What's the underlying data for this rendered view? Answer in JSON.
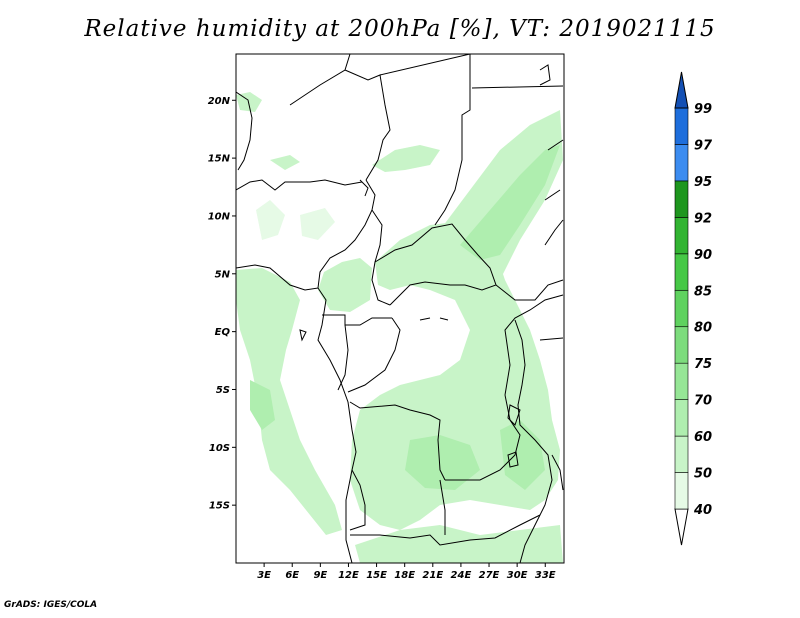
{
  "title": "Relative humidity at 200hPa [%], VT: 2019021115",
  "credit": "GrADS: IGES/COLA",
  "map": {
    "lon_range": [
      0,
      35
    ],
    "lat_range": [
      -20,
      24
    ],
    "lat_labels": [
      {
        "lat": 20,
        "text": "20N"
      },
      {
        "lat": 15,
        "text": "15N"
      },
      {
        "lat": 10,
        "text": "10N"
      },
      {
        "lat": 5,
        "text": "5N"
      },
      {
        "lat": 0,
        "text": "EQ"
      },
      {
        "lat": -5,
        "text": "5S"
      },
      {
        "lat": -10,
        "text": "10S"
      },
      {
        "lat": -15,
        "text": "15S"
      }
    ],
    "lon_labels": [
      {
        "lon": 3,
        "text": "3E"
      },
      {
        "lon": 6,
        "text": "6E"
      },
      {
        "lon": 9,
        "text": "9E"
      },
      {
        "lon": 12,
        "text": "12E"
      },
      {
        "lon": 15,
        "text": "15E"
      },
      {
        "lon": 18,
        "text": "18E"
      },
      {
        "lon": 21,
        "text": "21E"
      },
      {
        "lon": 24,
        "text": "24E"
      },
      {
        "lon": 27,
        "text": "27E"
      },
      {
        "lon": 30,
        "text": "30E"
      },
      {
        "lon": 33,
        "text": "33E"
      }
    ]
  },
  "colorbar": {
    "levels": [
      "40",
      "50",
      "60",
      "70",
      "75",
      "80",
      "85",
      "90",
      "92",
      "95",
      "97",
      "99"
    ],
    "colors": [
      "#e6fae6",
      "#c8f4c8",
      "#afeeaf",
      "#96e696",
      "#7ddc7d",
      "#5fd25f",
      "#46c846",
      "#32b432",
      "#1e961e",
      "#3c8cf0",
      "#1e6edc",
      "#1450b4"
    ]
  }
}
